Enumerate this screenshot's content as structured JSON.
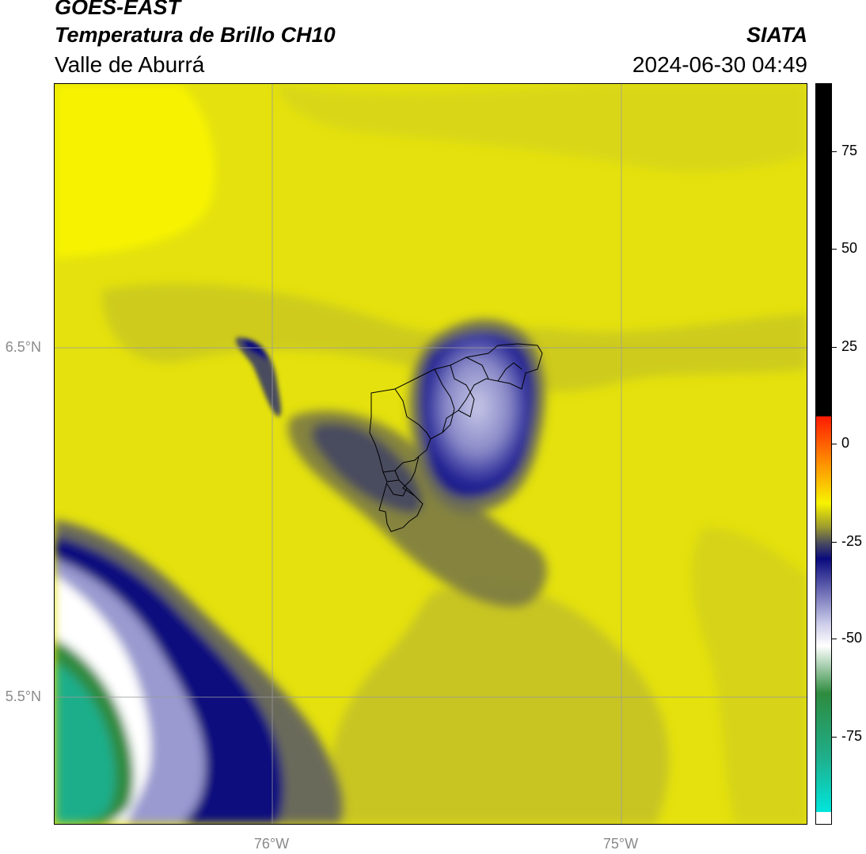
{
  "header": {
    "title_line1": "GOES-EAST",
    "title_line2": "Temperatura de Brillo CH10",
    "subtitle": "Valle de Aburrá",
    "organization": "SIATA",
    "datetime": "2024-06-30 04:49"
  },
  "axes": {
    "lat_labels": [
      "6.5°N",
      "5.5°N"
    ],
    "lon_labels": [
      "76°W",
      "75°W"
    ]
  },
  "colorbar": {
    "tick_labels": [
      "75",
      "50",
      "25",
      "0",
      "-25",
      "-50",
      "-75"
    ],
    "tick_values": [
      75,
      50,
      25,
      0,
      -25,
      -50,
      -75
    ],
    "range": [
      -95,
      92
    ],
    "colors": {
      "black_above": "#000000",
      "red": "#ff1a00",
      "orange": "#ff8800",
      "yellow": "#f7f300",
      "olive": "#9c9a2f",
      "gray": "#4a4b5e",
      "navy": "#0a0a7e",
      "lavender": "#c8c8e8",
      "white": "#ffffff",
      "green": "#2e8b3f",
      "teal": "#1fae8a",
      "cyan": "#00e6dc"
    }
  }
}
